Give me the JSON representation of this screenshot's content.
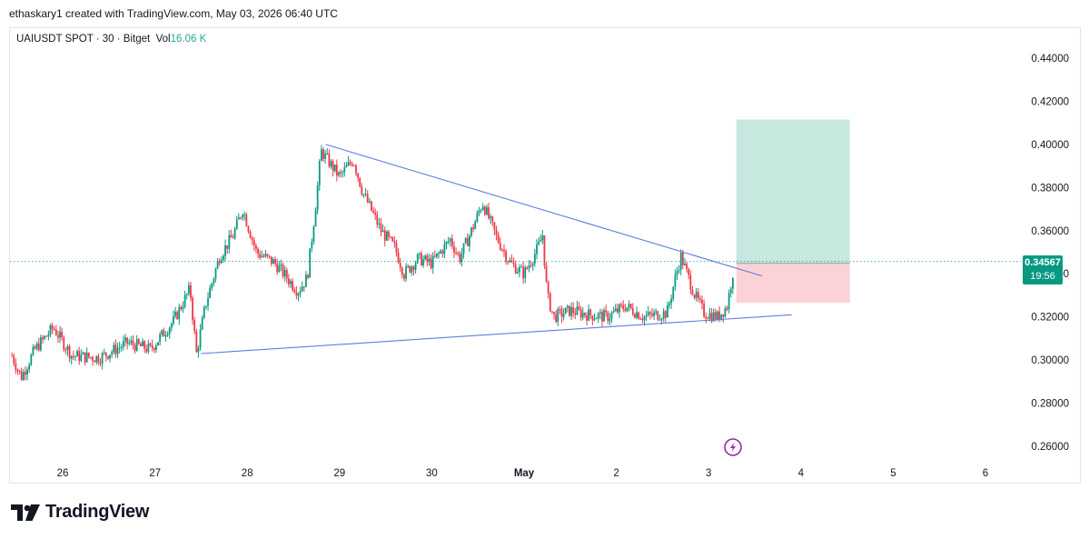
{
  "header": {
    "attribution": "ethaskary1 created with TradingView.com, May 03, 2026 06:40 UTC"
  },
  "symbol": {
    "label": "UAIUSDT SPOT · 30 · Bitget",
    "vol_label": "Vol",
    "vol_value": "16.06 K"
  },
  "last_price": {
    "price": "0.34567",
    "timer": "19:56"
  },
  "footer": {
    "brand": "TradingView"
  },
  "colors": {
    "up": "#089981",
    "down": "#f23645",
    "trendline": "#5b7fdb",
    "target_zone": "#c6e8df",
    "stop_zone": "#fbd3d6",
    "lightning": "#9c27b0"
  },
  "icons": {
    "lightning": "lightning-icon",
    "logo": "tradingview-logo-icon"
  },
  "chart_data": {
    "type": "candlestick",
    "title": "",
    "xlabel": "",
    "ylabel": "",
    "x_ticks": [
      "26",
      "27",
      "28",
      "29",
      "30",
      "May",
      "2",
      "3",
      "4",
      "5",
      "6"
    ],
    "y_ticks": [
      "0.26000",
      "0.28000",
      "0.30000",
      "0.32000",
      "0.34000",
      "0.36000",
      "0.38000",
      "0.40000",
      "0.42000",
      "0.44000"
    ],
    "ylim": [
      0.252,
      0.452
    ],
    "grid": false,
    "last_price": 0.34567,
    "series_close_anchors": [
      [
        25.45,
        0.302
      ],
      [
        25.55,
        0.292
      ],
      [
        25.7,
        0.305
      ],
      [
        25.9,
        0.315
      ],
      [
        26.1,
        0.302
      ],
      [
        26.4,
        0.301
      ],
      [
        26.7,
        0.308
      ],
      [
        26.95,
        0.305
      ],
      [
        27.2,
        0.318
      ],
      [
        27.38,
        0.333
      ],
      [
        27.45,
        0.303
      ],
      [
        27.55,
        0.326
      ],
      [
        27.7,
        0.348
      ],
      [
        27.85,
        0.358
      ],
      [
        27.95,
        0.37
      ],
      [
        28.1,
        0.35
      ],
      [
        28.3,
        0.345
      ],
      [
        28.55,
        0.332
      ],
      [
        28.65,
        0.338
      ],
      [
        28.75,
        0.375
      ],
      [
        28.8,
        0.397
      ],
      [
        29.0,
        0.385
      ],
      [
        29.15,
        0.393
      ],
      [
        29.25,
        0.378
      ],
      [
        29.45,
        0.36
      ],
      [
        29.6,
        0.352
      ],
      [
        29.7,
        0.34
      ],
      [
        29.85,
        0.347
      ],
      [
        30.0,
        0.345
      ],
      [
        30.2,
        0.356
      ],
      [
        30.3,
        0.347
      ],
      [
        30.45,
        0.362
      ],
      [
        30.55,
        0.373
      ],
      [
        30.7,
        0.357
      ],
      [
        30.85,
        0.345
      ],
      [
        31.0,
        0.34
      ],
      [
        31.15,
        0.352
      ],
      [
        31.2,
        0.358
      ],
      [
        31.25,
        0.33
      ],
      [
        31.32,
        0.32
      ],
      [
        31.5,
        0.323
      ],
      [
        31.7,
        0.321
      ],
      [
        31.9,
        0.32
      ],
      [
        32.1,
        0.325
      ],
      [
        32.3,
        0.32
      ],
      [
        32.55,
        0.322
      ],
      [
        32.65,
        0.34
      ],
      [
        32.7,
        0.348
      ],
      [
        32.85,
        0.33
      ],
      [
        32.95,
        0.322
      ],
      [
        33.1,
        0.32
      ],
      [
        33.2,
        0.325
      ],
      [
        33.28,
        0.345
      ]
    ],
    "trendlines": [
      {
        "name": "upper",
        "from": [
          28.85,
          0.4
        ],
        "to": [
          33.58,
          0.339
        ]
      },
      {
        "name": "lower",
        "from": [
          27.5,
          0.303
        ],
        "to": [
          33.9,
          0.321
        ]
      }
    ],
    "position": {
      "type": "long",
      "entry": 0.3448,
      "target": 0.4115,
      "stop": 0.3265,
      "x_start": 33.3,
      "x_end": 34.53
    }
  }
}
